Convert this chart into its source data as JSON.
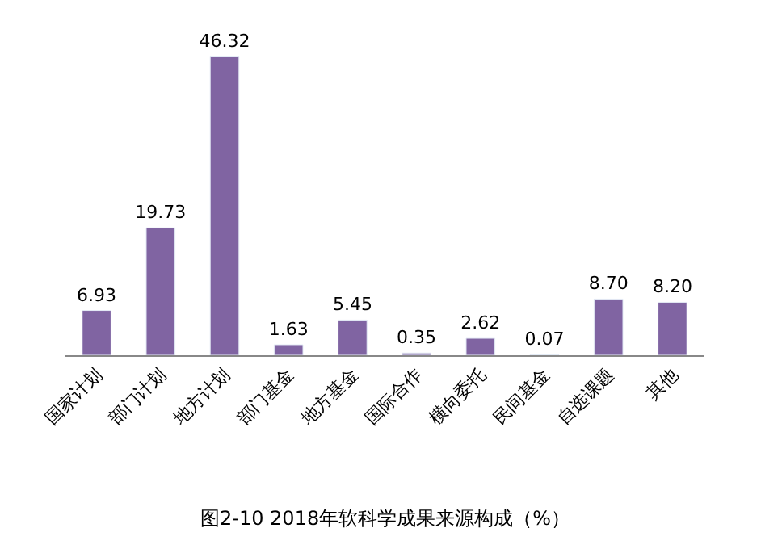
{
  "chart_data": {
    "type": "bar",
    "title": "图2-10 2018年软科学成果来源构成（%）",
    "categories": [
      "国家计划",
      "部门计划",
      "地方计划",
      "部门基金",
      "地方基金",
      "国际合作",
      "横向委托",
      "民间基金",
      "自选课题",
      "其他"
    ],
    "values": [
      6.93,
      19.73,
      46.32,
      1.63,
      5.45,
      0.35,
      2.62,
      0.07,
      8.7,
      8.2
    ],
    "value_labels": [
      "6.93",
      "19.73",
      "46.32",
      "1.63",
      "5.45",
      "0.35",
      "2.62",
      "0.07",
      "8.70",
      "8.20"
    ],
    "color": "#8064a2",
    "tick_labels": "x"
  }
}
